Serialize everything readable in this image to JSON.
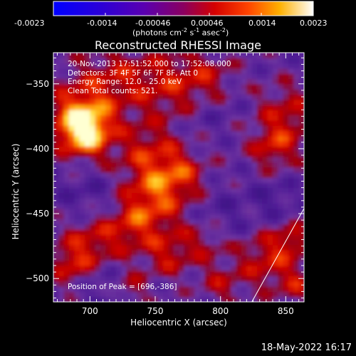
{
  "colorbar": {
    "tick_labels": [
      "-0.0023",
      "-0.0014",
      "-0.00046",
      "0.00046",
      "0.0014",
      "0.0023"
    ],
    "unit_label": "(photons cm",
    "unit_exp1": "-2",
    "unit_mid": " s",
    "unit_exp2": "-1",
    "unit_end": " asec",
    "unit_exp3": "-2",
    "unit_close": ")"
  },
  "chart_data": {
    "type": "heatmap",
    "title": "Reconstructed RHESSI Image",
    "xlabel": "Heliocentric X (arcsec)",
    "ylabel": "Heliocentric Y (arcsec)",
    "xlim": [
      672,
      864
    ],
    "ylim": [
      -518,
      -326
    ],
    "x_ticks": [
      700,
      750,
      800,
      850
    ],
    "y_ticks": [
      -350,
      -400,
      -450,
      -500
    ],
    "color_range": [
      -0.0023,
      0.0023
    ],
    "colormap": "blue-purple-red-orange-yellow-white",
    "annotations": [
      "20-Nov-2013 17:51:52.000 to 17:52:08.000",
      "Detectors: 3F 4F 5F 6F 7F 8F, Att 0",
      "Energy Range: 12.0 - 25.0 keV",
      "Clean     Total counts: 521."
    ],
    "peak_label": "Position of Peak = [696,-386]",
    "peak": [
      696,
      -386
    ],
    "limb_curve": [
      [
        824,
        -518
      ],
      [
        864,
        -446
      ]
    ]
  },
  "footer": {
    "date": "18-May-2022 16:17"
  }
}
